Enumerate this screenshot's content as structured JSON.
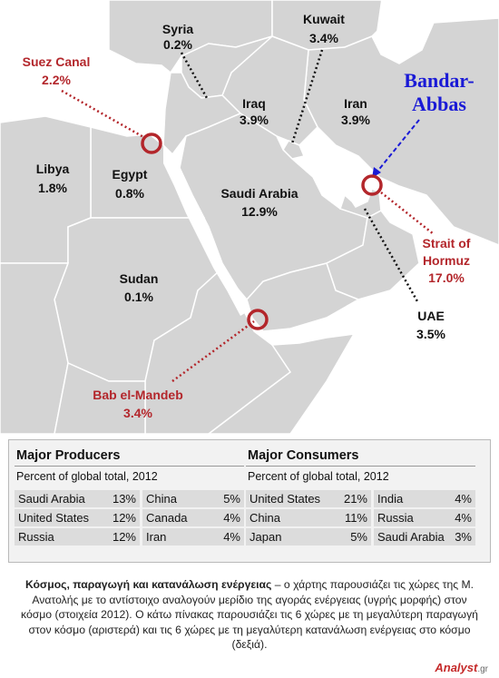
{
  "map": {
    "countries": [
      {
        "name": "Syria",
        "value": "0.2%"
      },
      {
        "name": "Kuwait",
        "value": "3.4%"
      },
      {
        "name": "Iraq",
        "value": "3.9%"
      },
      {
        "name": "Iran",
        "value": "3.9%"
      },
      {
        "name": "Libya",
        "value": "1.8%"
      },
      {
        "name": "Egypt",
        "value": "0.8%"
      },
      {
        "name": "Saudi Arabia",
        "value": "12.9%"
      },
      {
        "name": "Sudan",
        "value": "0.1%"
      },
      {
        "name": "UAE",
        "value": "3.5%"
      }
    ],
    "chokepoints": [
      {
        "name": "Suez Canal",
        "value": "2.2%"
      },
      {
        "name": "Bab el-Mandeb",
        "value": "3.4%"
      },
      {
        "name": "Strait of Hormuz",
        "name2": "Hormuz",
        "line1": "Strait of",
        "value": "17.0%"
      }
    ],
    "port": {
      "line1": "Bandar-",
      "line2": "Abbas"
    },
    "colors": {
      "land": "#d4d4d4",
      "border": "#ffffff",
      "chokepoint": "#b3262b",
      "port": "#1a1ad6",
      "sea": "#ffffff"
    }
  },
  "producers": {
    "title": "Major Producers",
    "subtitle": "Percent of global total, 2012",
    "col1": [
      {
        "country": "Saudi Arabia",
        "pct": "13%"
      },
      {
        "country": "United States",
        "pct": "12%"
      },
      {
        "country": "Russia",
        "pct": "12%"
      }
    ],
    "col2": [
      {
        "country": "China",
        "pct": "5%"
      },
      {
        "country": "Canada",
        "pct": "4%"
      },
      {
        "country": "Iran",
        "pct": "4%"
      }
    ]
  },
  "consumers": {
    "title": "Major Consumers",
    "subtitle": "Percent of global total, 2012",
    "col1": [
      {
        "country": "United States",
        "pct": "21%"
      },
      {
        "country": "China",
        "pct": "11%"
      },
      {
        "country": "Japan",
        "pct": "5%"
      }
    ],
    "col2": [
      {
        "country": "India",
        "pct": "4%"
      },
      {
        "country": "Russia",
        "pct": "4%"
      },
      {
        "country": "Saudi Arabia",
        "pct": "3%"
      }
    ]
  },
  "caption": {
    "bold": "Κόσμος, παραγωγή και κατανάλωση ενέργειας",
    "text": " – ο χάρτης παρουσιάζει τις χώρες της Μ. Ανατολής με το αντίστοιχο αναλογούν μερίδιο της αγοράς ενέργειας (υγρής μορφής) στον κόσμο (στοιχεία 2012). Ο κάτω πίνακας παρουσιάζει τις 6 χώρες με τη μεγαλύτερη παραγωγή στον κόσμο (αριστερά) και τις 6 χώρες με τη μεγαλύτερη κατανάλωση ενέργειας στο κόσμο (δεξιά)."
  },
  "logo": {
    "name": "Analyst",
    "suffix": ".gr"
  }
}
